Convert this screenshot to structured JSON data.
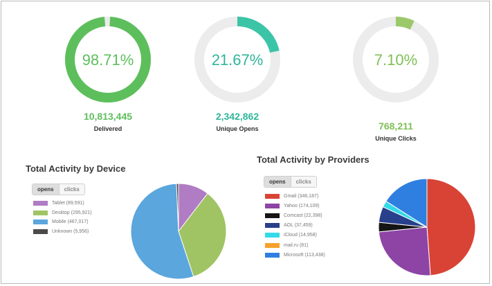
{
  "summary": [
    {
      "id": "delivered",
      "percent_text": "98.71%",
      "fraction": 0.9871,
      "count": "10,813,445",
      "label": "Delivered",
      "color": "#5dbf5c",
      "text_color": "#5dbf5c"
    },
    {
      "id": "unique-opens",
      "percent_text": "21.67%",
      "fraction": 0.2167,
      "count": "2,342,862",
      "label": "Unique Opens",
      "color": "#3cc4a7",
      "text_color": "#2fb59a"
    },
    {
      "id": "unique-clicks",
      "percent_text": "7.10%",
      "fraction": 0.071,
      "count": "768,211",
      "label": "Unique Clicks",
      "color": "#9bc96a",
      "text_color": "#7fbf55"
    }
  ],
  "device": {
    "title": "Total Activity by Device",
    "toggle": {
      "active": "opens",
      "inactive": "clicks"
    },
    "legend": [
      {
        "label": "Tablet (89,591)",
        "color": "#b07cc3"
      },
      {
        "label": "Desktop (295,921)",
        "color": "#a0c464"
      },
      {
        "label": "Mobile (467,017)",
        "color": "#5aa6dd"
      },
      {
        "label": "Unknown (5,956)",
        "color": "#4a4a4a"
      }
    ]
  },
  "providers": {
    "title": "Total Activity by Providers",
    "toggle": {
      "active": "opens",
      "inactive": "clicks"
    },
    "legend": [
      {
        "label": "Gmail (346,187)",
        "color": "#d94335"
      },
      {
        "label": "Yahoo (174,109)",
        "color": "#8d44a5"
      },
      {
        "label": "Comcast (22,398)",
        "color": "#151515"
      },
      {
        "label": "AOL (37,459)",
        "color": "#283f8c"
      },
      {
        "label": "iCloud (14,958)",
        "color": "#33dbe8"
      },
      {
        "label": "mail.ru (81)",
        "color": "#f6a12b"
      },
      {
        "label": "Microsoft (113,438)",
        "color": "#2f7fe0"
      }
    ]
  },
  "chart_data": [
    {
      "type": "pie",
      "title": "Total Activity by Device",
      "categories": [
        "Tablet",
        "Desktop",
        "Mobile",
        "Unknown"
      ],
      "values": [
        89591,
        295921,
        467017,
        5956
      ],
      "colors": [
        "#b07cc3",
        "#a0c464",
        "#5aa6dd",
        "#4a4a4a"
      ]
    },
    {
      "type": "pie",
      "title": "Total Activity by Providers",
      "categories": [
        "Gmail",
        "Yahoo",
        "Comcast",
        "AOL",
        "iCloud",
        "mail.ru",
        "Microsoft"
      ],
      "values": [
        346187,
        174109,
        22398,
        37459,
        14958,
        81,
        113438
      ],
      "colors": [
        "#d94335",
        "#8d44a5",
        "#151515",
        "#283f8c",
        "#33dbe8",
        "#f6a12b",
        "#2f7fe0"
      ]
    }
  ]
}
